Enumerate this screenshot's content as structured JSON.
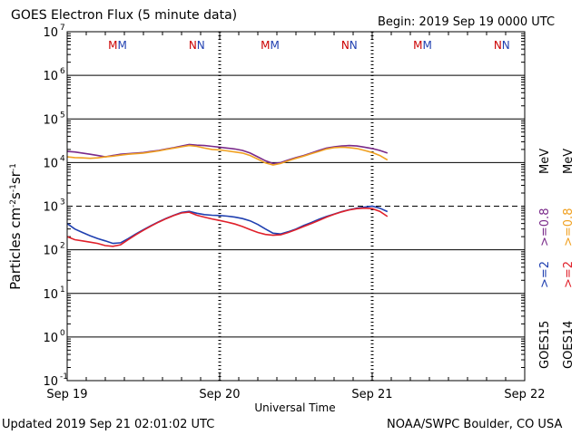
{
  "header": {
    "title": "GOES Electron Flux (5 minute data)",
    "begin": "Begin: 2019 Sep 19 0000 UTC"
  },
  "footer": {
    "updated": "Updated 2019 Sep 21 02:01:02 UTC",
    "source": "NOAA/SWPC Boulder, CO USA"
  },
  "colors": {
    "goes15_ge2": "#1f3fb0",
    "goes14_ge2": "#e0202a",
    "goes15_ge08": "#7a2a8a",
    "goes14_ge08": "#f0a020",
    "marker_m_first": "#cc0000",
    "marker_m_second": "#1f3fb0",
    "marker_n_first": "#cc0000",
    "marker_n_second": "#1f3fb0"
  },
  "chart_data": {
    "type": "line",
    "title": "GOES Electron Flux (5 minute data)",
    "xlabel": "Universal Time",
    "ylabel": "Particles cm⁻²s⁻¹sr⁻¹",
    "ylabel_parts": {
      "base": "Particles cm",
      "e1": "-2",
      "mid1": "s",
      "e2": "-1",
      "mid2": "sr",
      "e3": "-1"
    },
    "yscale": "log",
    "ylim": [
      0.1,
      10000000
    ],
    "xlim": [
      0,
      3
    ],
    "x_ticks": [
      {
        "value": 0,
        "label": "Sep 19"
      },
      {
        "value": 1,
        "label": "Sep 20"
      },
      {
        "value": 2,
        "label": "Sep 21"
      },
      {
        "value": 3,
        "label": "Sep 22"
      }
    ],
    "y_ticks": [
      {
        "exp": 7,
        "label": "10",
        "sup": "7"
      },
      {
        "exp": 6,
        "label": "10",
        "sup": "6"
      },
      {
        "exp": 5,
        "label": "10",
        "sup": "5"
      },
      {
        "exp": 4,
        "label": "10",
        "sup": "4"
      },
      {
        "exp": 3,
        "label": "10",
        "sup": "3"
      },
      {
        "exp": 2,
        "label": "10",
        "sup": "2"
      },
      {
        "exp": 1,
        "label": "10",
        "sup": "1"
      },
      {
        "exp": 0,
        "label": "10",
        "sup": "0"
      },
      {
        "exp": -1,
        "label": "10",
        "sup": "-1"
      }
    ],
    "grid": true,
    "threshold": {
      "value": 1000,
      "style": "dashed"
    },
    "markers": [
      {
        "x": 0.33,
        "letters": "MM"
      },
      {
        "x": 0.85,
        "letters": "NN"
      },
      {
        "x": 1.33,
        "letters": "MM"
      },
      {
        "x": 1.85,
        "letters": "NN"
      },
      {
        "x": 2.33,
        "letters": "MM"
      },
      {
        "x": 2.85,
        "letters": "NN"
      }
    ],
    "legend": {
      "placement": "right",
      "columns": [
        {
          "satellite": "GOES15",
          "lower": ">=2",
          "upper": ">=0.8",
          "unit": "MeV"
        },
        {
          "satellite": "GOES14",
          "lower": ">=2",
          "upper": ">=0.8",
          "unit": "MeV"
        }
      ]
    },
    "series": [
      {
        "name": "GOES15 >=0.8 MeV",
        "x": [
          0,
          0.05,
          0.1,
          0.15,
          0.2,
          0.25,
          0.3,
          0.35,
          0.4,
          0.45,
          0.5,
          0.55,
          0.6,
          0.65,
          0.7,
          0.75,
          0.8,
          0.85,
          0.9,
          0.95,
          1.0,
          1.05,
          1.1,
          1.15,
          1.2,
          1.25,
          1.3,
          1.35,
          1.4,
          1.45,
          1.5,
          1.55,
          1.6,
          1.65,
          1.7,
          1.75,
          1.8,
          1.85,
          1.9,
          1.95,
          2.0,
          2.05,
          2.1
        ],
        "values": [
          18000,
          17500,
          16500,
          15500,
          14500,
          13500,
          14500,
          15500,
          16000,
          16500,
          17000,
          18000,
          19000,
          20500,
          22000,
          24000,
          26000,
          25000,
          24500,
          23500,
          22500,
          21500,
          20500,
          19000,
          16500,
          13500,
          11000,
          9500,
          10000,
          11500,
          13000,
          14500,
          16500,
          19000,
          21500,
          23000,
          24000,
          24500,
          24000,
          22500,
          21000,
          19000,
          16500
        ]
      },
      {
        "name": "GOES14 >=0.8 MeV",
        "x": [
          0,
          0.05,
          0.1,
          0.15,
          0.2,
          0.25,
          0.3,
          0.35,
          0.4,
          0.45,
          0.5,
          0.55,
          0.6,
          0.65,
          0.7,
          0.75,
          0.8,
          0.85,
          0.9,
          0.95,
          1.0,
          1.05,
          1.1,
          1.15,
          1.2,
          1.25,
          1.3,
          1.35,
          1.4,
          1.45,
          1.5,
          1.55,
          1.6,
          1.65,
          1.7,
          1.75,
          1.8,
          1.85,
          1.9,
          1.95,
          2.0,
          2.05,
          2.1
        ],
        "values": [
          13500,
          13000,
          12800,
          12500,
          12800,
          13500,
          14000,
          14800,
          15500,
          16000,
          16500,
          17500,
          18500,
          20000,
          21500,
          23000,
          24500,
          23500,
          21500,
          20000,
          19500,
          18500,
          17500,
          16500,
          14500,
          12000,
          9800,
          8800,
          9500,
          11000,
          12500,
          14000,
          16000,
          18000,
          20500,
          22000,
          22500,
          22000,
          21000,
          19000,
          17000,
          14500,
          11500
        ]
      },
      {
        "name": "GOES15 >=2 MeV",
        "x": [
          0,
          0.05,
          0.1,
          0.15,
          0.2,
          0.25,
          0.3,
          0.35,
          0.4,
          0.45,
          0.5,
          0.55,
          0.6,
          0.65,
          0.7,
          0.75,
          0.8,
          0.85,
          0.9,
          0.95,
          1.0,
          1.05,
          1.1,
          1.15,
          1.2,
          1.25,
          1.3,
          1.35,
          1.4,
          1.45,
          1.5,
          1.55,
          1.6,
          1.65,
          1.7,
          1.75,
          1.8,
          1.85,
          1.9,
          1.95,
          2.0,
          2.05,
          2.1
        ],
        "values": [
          400,
          300,
          250,
          210,
          180,
          160,
          140,
          145,
          180,
          230,
          290,
          360,
          440,
          530,
          620,
          720,
          760,
          690,
          640,
          620,
          610,
          590,
          560,
          520,
          460,
          380,
          300,
          240,
          230,
          260,
          300,
          360,
          420,
          500,
          580,
          660,
          750,
          830,
          900,
          950,
          1000,
          900,
          750
        ]
      },
      {
        "name": "GOES14 >=2 MeV",
        "x": [
          0,
          0.05,
          0.1,
          0.15,
          0.2,
          0.25,
          0.3,
          0.35,
          0.4,
          0.45,
          0.5,
          0.55,
          0.6,
          0.65,
          0.7,
          0.75,
          0.8,
          0.85,
          0.9,
          0.95,
          1.0,
          1.05,
          1.1,
          1.15,
          1.2,
          1.25,
          1.3,
          1.35,
          1.4,
          1.45,
          1.5,
          1.55,
          1.6,
          1.65,
          1.7,
          1.75,
          1.8,
          1.85,
          1.9,
          1.95,
          2.0,
          2.05,
          2.1
        ],
        "values": [
          200,
          170,
          160,
          150,
          140,
          125,
          120,
          130,
          170,
          220,
          280,
          350,
          430,
          520,
          610,
          700,
          730,
          620,
          560,
          510,
          470,
          430,
          390,
          340,
          290,
          250,
          225,
          215,
          220,
          250,
          290,
          340,
          400,
          470,
          560,
          650,
          740,
          820,
          880,
          900,
          880,
          760,
          580
        ]
      }
    ]
  }
}
